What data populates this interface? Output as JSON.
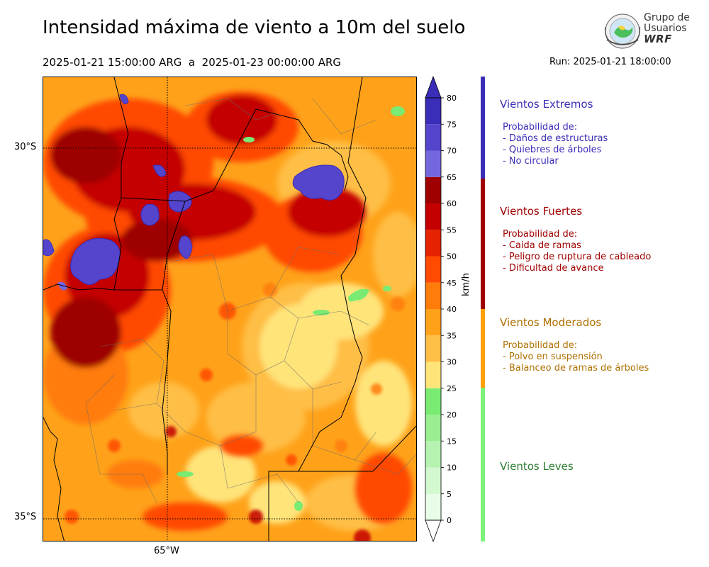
{
  "header": {
    "title": "Intensidad máxima de viento a 10m del suelo",
    "period": "2025-01-21 15:00:00 ARG  a  2025-01-23 00:00:00 ARG",
    "run": "Run: 2025-01-21 18:00:00"
  },
  "logo": {
    "line1": "Grupo de",
    "line2": "Usuarios",
    "line3": "WRF"
  },
  "map": {
    "lat_labels": [
      "30°S",
      "35°S"
    ],
    "lon_labels": [
      "65°W"
    ]
  },
  "colorbar": {
    "unit": "km/h",
    "ticks": [
      "0",
      "5",
      "10",
      "15",
      "20",
      "25",
      "30",
      "35",
      "40",
      "45",
      "50",
      "55",
      "60",
      "65",
      "70",
      "75",
      "80"
    ],
    "bins": [
      {
        "from": 0,
        "to": 5,
        "color": "#e8fde8"
      },
      {
        "from": 5,
        "to": 10,
        "color": "#d2f8d0"
      },
      {
        "from": 10,
        "to": 15,
        "color": "#b6f2b0"
      },
      {
        "from": 15,
        "to": 20,
        "color": "#9aee92"
      },
      {
        "from": 20,
        "to": 25,
        "color": "#79ea72"
      },
      {
        "from": 25,
        "to": 30,
        "color": "#ffe47a"
      },
      {
        "from": 30,
        "to": 35,
        "color": "#ffbe45"
      },
      {
        "from": 35,
        "to": 40,
        "color": "#ffa21a"
      },
      {
        "from": 40,
        "to": 45,
        "color": "#ff7b0a"
      },
      {
        "from": 45,
        "to": 50,
        "color": "#ff4a00"
      },
      {
        "from": 50,
        "to": 55,
        "color": "#e62200"
      },
      {
        "from": 55,
        "to": 60,
        "color": "#c40000"
      },
      {
        "from": 60,
        "to": 65,
        "color": "#9e0000"
      },
      {
        "from": 65,
        "to": 70,
        "color": "#7467de"
      },
      {
        "from": 70,
        "to": 75,
        "color": "#5445cc"
      },
      {
        "from": 75,
        "to": 80,
        "color": "#3a2db8"
      }
    ],
    "extend_high_color": "#3a2db8",
    "extend_low_color": "#ffffff"
  },
  "categories": [
    {
      "title": "Vientos Extremos",
      "color": "#3a2db8",
      "range": [
        65,
        80
      ],
      "desc": "Probabilidad de:\n- Daños de estructuras\n- Quiebres de árboles\n- No circular"
    },
    {
      "title": "Vientos Fuertes",
      "color": "#a00000",
      "range": [
        45,
        65
      ],
      "desc": "Probabilidad de:\n- Caida de ramas\n- Peligro de ruptura de cableado\n- Dificultad de avance"
    },
    {
      "title": "Vientos Moderados",
      "color": "#b07000",
      "range": [
        25,
        45
      ],
      "desc": "Probabilidad de:\n- Polvo en suspensión\n- Balanceo de ramas de árboles"
    },
    {
      "title": "Vientos Leves",
      "color": "#2e7d32",
      "range": [
        0,
        25
      ],
      "desc": ""
    }
  ],
  "category_bar_colors": [
    "#3a2db8",
    "#a00000",
    "#ff9f00",
    "#7cf27a"
  ]
}
